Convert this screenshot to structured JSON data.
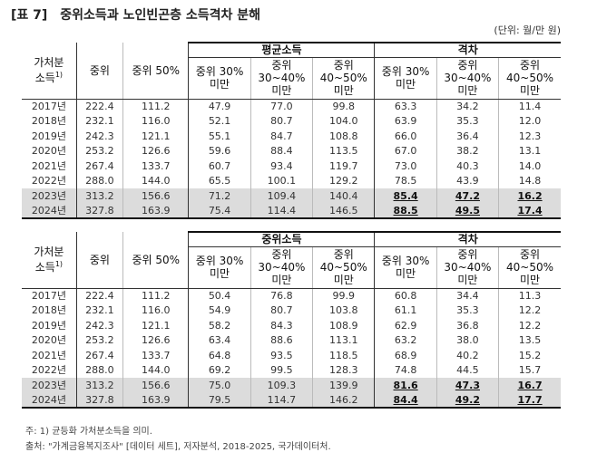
{
  "title": {
    "tag": "[표 7]",
    "text": "중위소득과 노인빈곤층 소득격차 분해"
  },
  "unit": "(단위: 월/만 원)",
  "headers": {
    "year_col_line1": "가처분",
    "year_col_line2": "소득",
    "year_col_sup": "1)",
    "median": "중위",
    "median50": "중위 50%",
    "d30_line1": "중위 30%",
    "d30_line2": "미만",
    "d3040_line1": "중위",
    "d3040_line2": "30~40%",
    "d3040_line3": "미만",
    "d4050_line1": "중위",
    "d4050_line2": "40~50%",
    "d4050_line3": "미만",
    "gap_d30_line1": "중위 30%",
    "gap_d30_line2": "미만",
    "gap_d3040_line1": "중위",
    "gap_d3040_line2": "30~40%",
    "gap_d3040_line3": "미만",
    "gap_d4050_line1": "중위",
    "gap_d4050_line2": "40~50%",
    "gap_d4050_line3": "미만"
  },
  "table1": {
    "group_left": "평균소득",
    "group_right": "격차",
    "rows": [
      [
        "2017년",
        "222.4",
        "111.2",
        "47.9",
        "77.0",
        "99.8",
        "63.3",
        "34.2",
        "11.4"
      ],
      [
        "2018년",
        "232.1",
        "116.0",
        "52.1",
        "80.7",
        "104.0",
        "63.9",
        "35.3",
        "12.0"
      ],
      [
        "2019년",
        "242.3",
        "121.1",
        "55.1",
        "84.7",
        "108.8",
        "66.0",
        "36.4",
        "12.3"
      ],
      [
        "2020년",
        "253.2",
        "126.6",
        "59.6",
        "88.4",
        "113.5",
        "67.0",
        "38.2",
        "13.1"
      ],
      [
        "2021년",
        "267.4",
        "133.7",
        "60.7",
        "93.4",
        "119.7",
        "73.0",
        "40.3",
        "14.0"
      ],
      [
        "2022년",
        "288.0",
        "144.0",
        "65.5",
        "100.1",
        "129.2",
        "78.5",
        "43.9",
        "14.8"
      ],
      [
        "2023년",
        "313.2",
        "156.6",
        "71.2",
        "109.4",
        "140.4",
        "85.4",
        "47.2",
        "16.2"
      ],
      [
        "2024년",
        "327.8",
        "163.9",
        "75.4",
        "114.4",
        "146.5",
        "88.5",
        "49.5",
        "17.4"
      ]
    ]
  },
  "table2": {
    "group_left": "중위소득",
    "group_right": "격차",
    "rows": [
      [
        "2017년",
        "222.4",
        "111.2",
        "50.4",
        "76.8",
        "99.9",
        "60.8",
        "34.4",
        "11.3"
      ],
      [
        "2018년",
        "232.1",
        "116.0",
        "54.9",
        "80.7",
        "103.8",
        "61.1",
        "35.3",
        "12.2"
      ],
      [
        "2019년",
        "242.3",
        "121.1",
        "58.2",
        "84.3",
        "108.9",
        "62.9",
        "36.8",
        "12.2"
      ],
      [
        "2020년",
        "253.2",
        "126.6",
        "63.4",
        "88.6",
        "113.1",
        "63.2",
        "38.0",
        "13.5"
      ],
      [
        "2021년",
        "267.4",
        "133.7",
        "64.8",
        "93.5",
        "118.5",
        "68.9",
        "40.2",
        "15.2"
      ],
      [
        "2022년",
        "288.0",
        "144.0",
        "69.2",
        "99.5",
        "128.3",
        "74.8",
        "44.5",
        "15.7"
      ],
      [
        "2023년",
        "313.2",
        "156.6",
        "75.0",
        "109.3",
        "139.9",
        "81.6",
        "47.3",
        "16.7"
      ],
      [
        "2024년",
        "327.8",
        "163.9",
        "79.5",
        "114.7",
        "146.2",
        "84.4",
        "49.2",
        "17.7"
      ]
    ]
  },
  "notes": {
    "note1": "주: 1) 균등화 가처분소득을 의미.",
    "source": "출처: \"가계금융복지조사\" [데이터 세트], 저자분석, 2018-2025, 국가데이터처."
  }
}
